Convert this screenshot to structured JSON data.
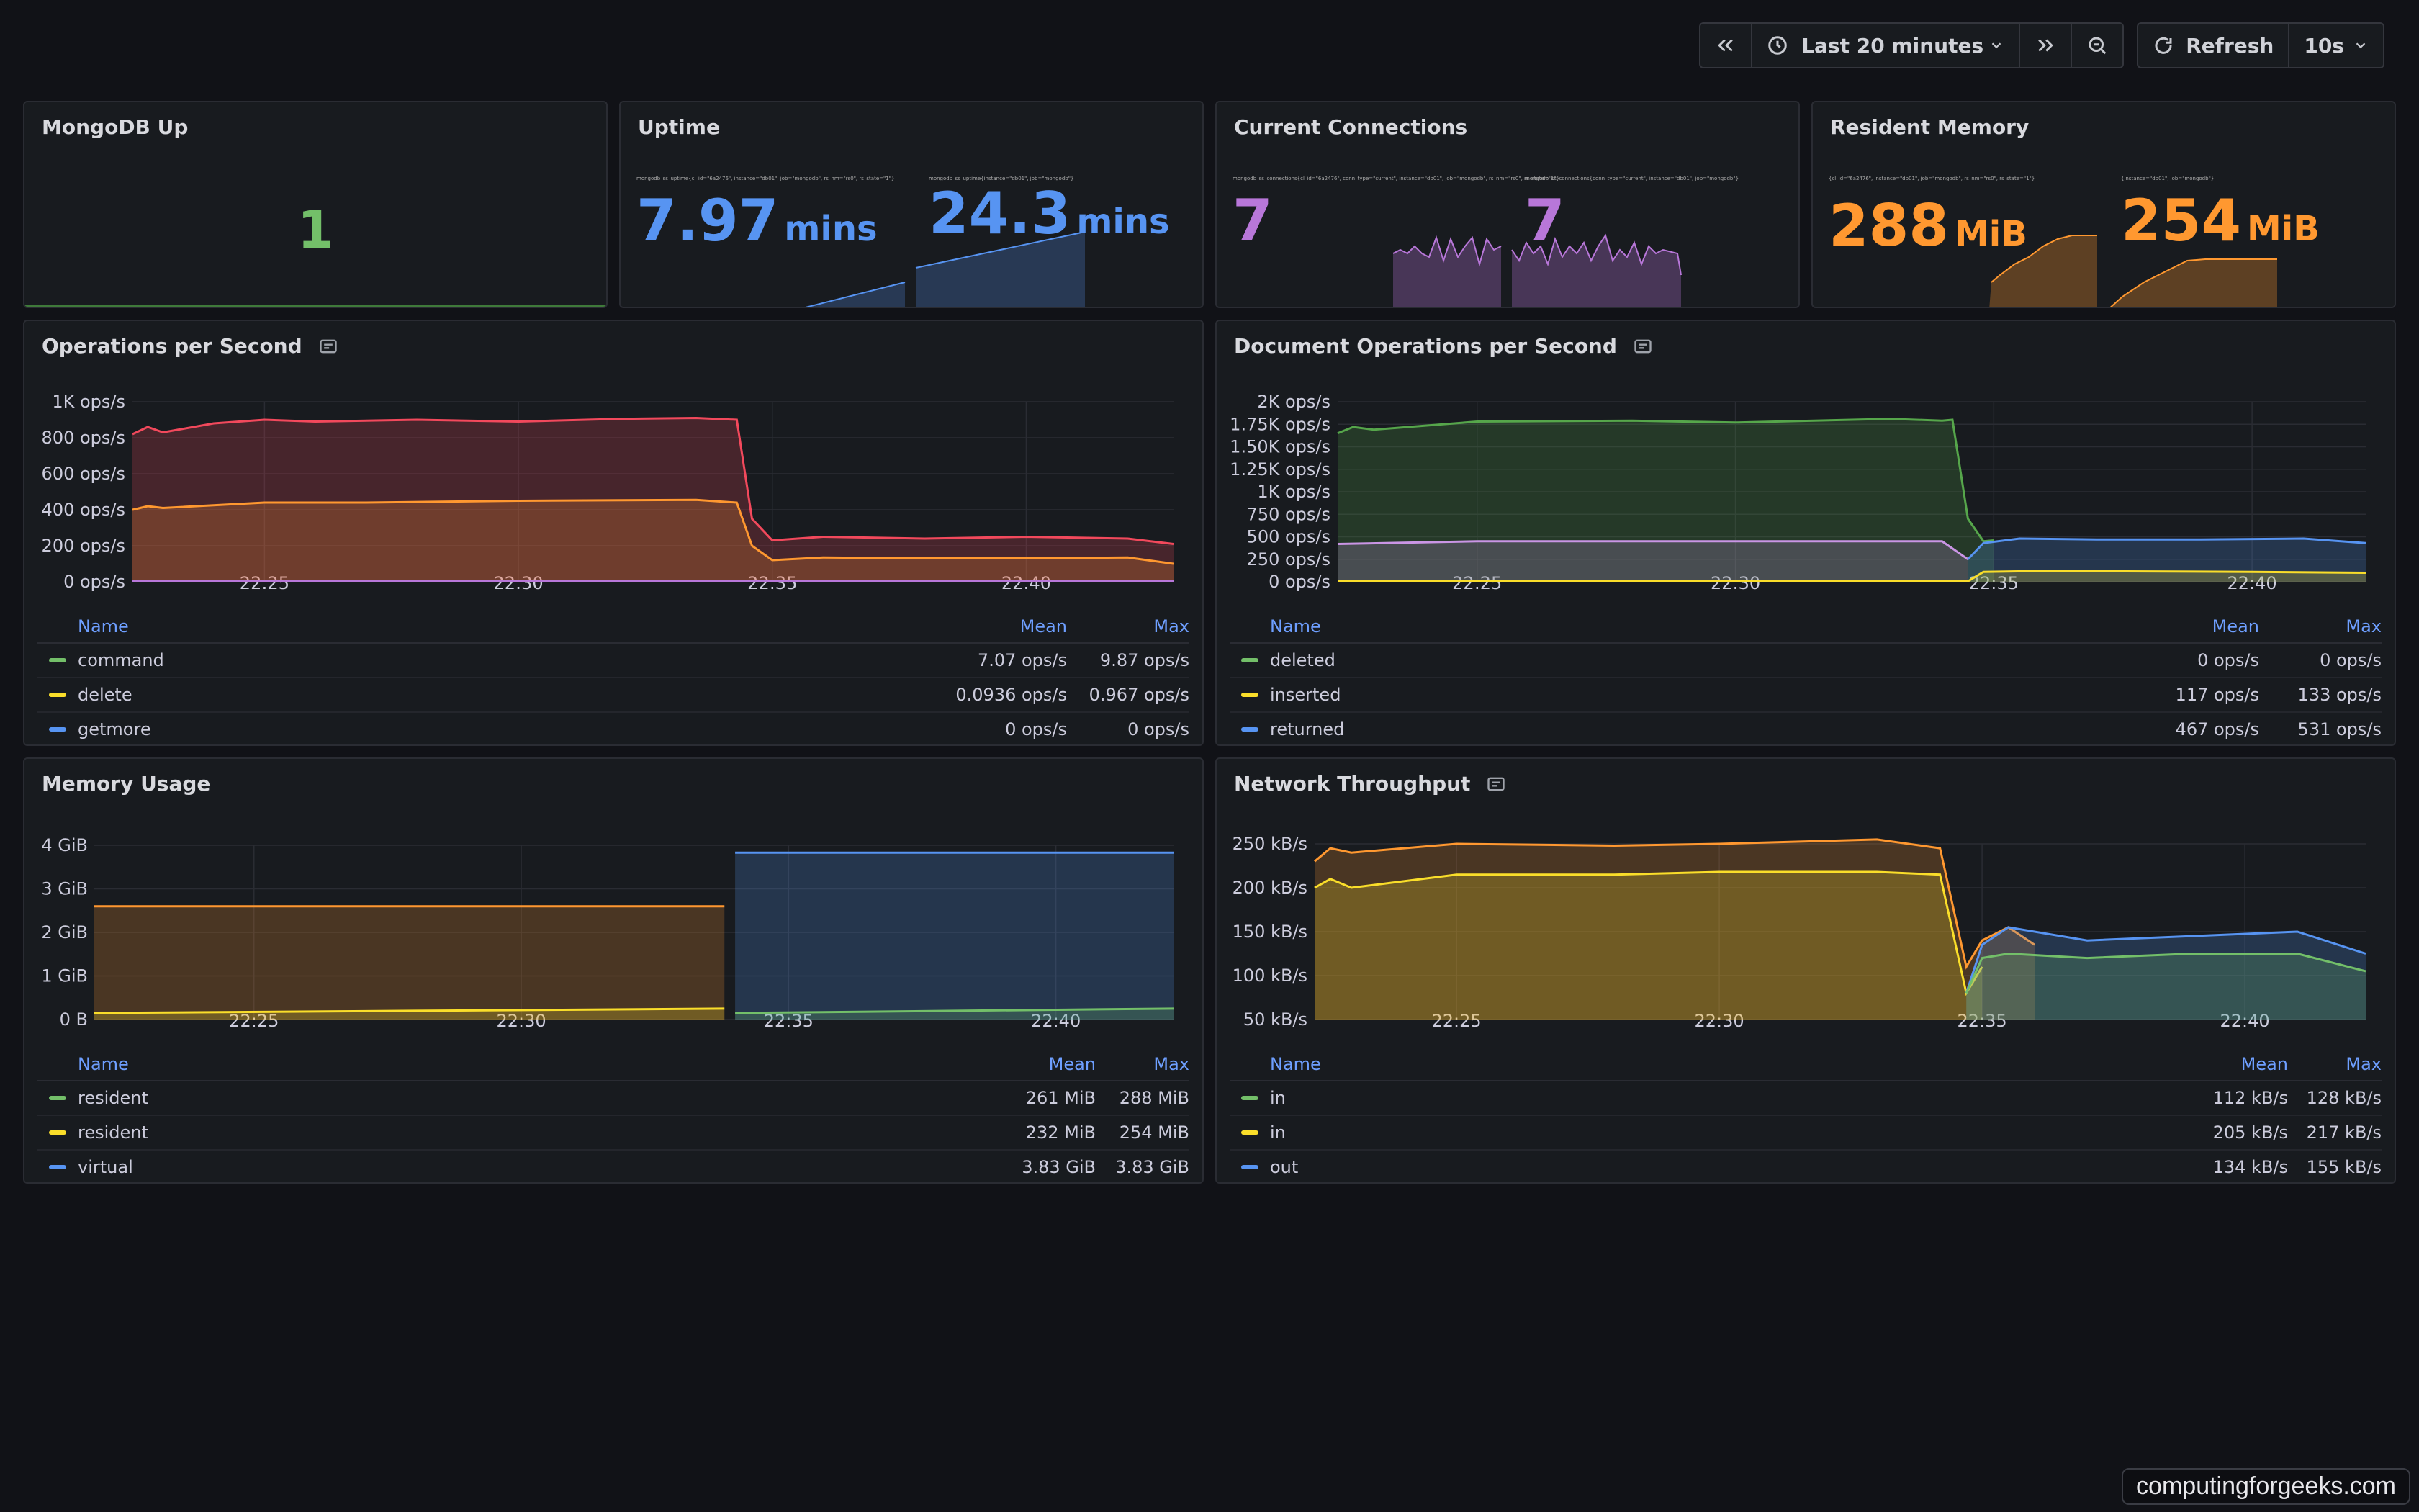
{
  "toolbar": {
    "time_range": "Last 20 minutes",
    "refresh_label": "Refresh",
    "refresh_interval": "10s"
  },
  "stats": {
    "mongodb_up": {
      "title": "MongoDB Up",
      "value": "1",
      "color": "#73bf69"
    },
    "uptime": {
      "title": "Uptime",
      "v1": "7.97",
      "v2": "24.3",
      "unit": "mins",
      "color": "#5794f2",
      "l1": "mongodb_ss_uptime{cl_id=\"6a2476\", instance=\"db01\", job=\"mongodb\", rs_nm=\"rs0\", rs_state=\"1\"}",
      "l2": "mongodb_ss_uptime{instance=\"db01\", job=\"mongodb\"}"
    },
    "connections": {
      "title": "Current Connections",
      "v1": "7",
      "v2": "7",
      "color": "#b877d9",
      "l1": "mongodb_ss_connections{cl_id=\"6a2476\", conn_type=\"current\", instance=\"db01\", job=\"mongodb\", rs_nm=\"rs0\", rs_state=\"1\"}",
      "l2": "mongodb_ss_connections{conn_type=\"current\", instance=\"db01\", job=\"mongodb\"}"
    },
    "resident_memory": {
      "title": "Resident Memory",
      "v1": "288",
      "v2": "254",
      "unit": "MiB",
      "color": "#ff9830",
      "l1": "{cl_id=\"6a2476\", instance=\"db01\", job=\"mongodb\", rs_nm=\"rs0\", rs_state=\"1\"}",
      "l2": "{instance=\"db01\", job=\"mongodb\"}"
    }
  },
  "panels": {
    "ops": {
      "title": "Operations per Second",
      "legend_head": {
        "name": "Name",
        "c1": "Mean",
        "c2": "Max"
      },
      "rows": [
        {
          "name": "command",
          "c1": "7.07 ops/s",
          "c2": "9.87 ops/s",
          "color": "#73bf69"
        },
        {
          "name": "delete",
          "c1": "0.0936 ops/s",
          "c2": "0.967 ops/s",
          "color": "#fade2a"
        },
        {
          "name": "getmore",
          "c1": "0 ops/s",
          "c2": "0 ops/s",
          "color": "#5794f2"
        }
      ]
    },
    "docops": {
      "title": "Document Operations per Second",
      "legend_head": {
        "name": "Name",
        "c1": "Mean",
        "c2": "Max"
      },
      "rows": [
        {
          "name": "deleted",
          "c1": "0 ops/s",
          "c2": "0 ops/s",
          "color": "#73bf69"
        },
        {
          "name": "inserted",
          "c1": "117 ops/s",
          "c2": "133 ops/s",
          "color": "#fade2a"
        },
        {
          "name": "returned",
          "c1": "467 ops/s",
          "c2": "531 ops/s",
          "color": "#5794f2"
        }
      ]
    },
    "mem": {
      "title": "Memory Usage",
      "legend_head": {
        "name": "Name",
        "c1": "Mean",
        "c2": "Max"
      },
      "rows": [
        {
          "name": "resident",
          "c1": "261 MiB",
          "c2": "288 MiB",
          "color": "#73bf69"
        },
        {
          "name": "resident",
          "c1": "232 MiB",
          "c2": "254 MiB",
          "color": "#fade2a"
        },
        {
          "name": "virtual",
          "c1": "3.83 GiB",
          "c2": "3.83 GiB",
          "color": "#5794f2"
        }
      ]
    },
    "net": {
      "title": "Network Throughput",
      "legend_head": {
        "name": "Name",
        "c1": "Mean",
        "c2": "Max"
      },
      "rows": [
        {
          "name": "in",
          "c1": "112 kB/s",
          "c2": "128 kB/s",
          "color": "#73bf69"
        },
        {
          "name": "in",
          "c1": "205 kB/s",
          "c2": "217 kB/s",
          "color": "#fade2a"
        },
        {
          "name": "out",
          "c1": "134 kB/s",
          "c2": "155 kB/s",
          "color": "#5794f2"
        }
      ]
    }
  },
  "chart_data": [
    {
      "type": "area",
      "title": "Operations per Second",
      "x_ticks": [
        "22:25",
        "22:30",
        "22:35",
        "22:40"
      ],
      "y_ticks": [
        "0 ops/s",
        "200 ops/s",
        "400 ops/s",
        "600 ops/s",
        "800 ops/s",
        "1K ops/s"
      ],
      "ylim": [
        0,
        1000
      ],
      "x_range_min": [
        22.4,
        42.9
      ],
      "series": [
        {
          "color": "#f2495c",
          "points": [
            [
              22.4,
              820
            ],
            [
              22.7,
              860
            ],
            [
              23.0,
              830
            ],
            [
              24.0,
              880
            ],
            [
              25.0,
              900
            ],
            [
              26.0,
              890
            ],
            [
              28.0,
              900
            ],
            [
              30.0,
              890
            ],
            [
              32.0,
              905
            ],
            [
              33.5,
              910
            ],
            [
              34.3,
              900
            ],
            [
              34.6,
              350
            ],
            [
              35.0,
              230
            ],
            [
              36.0,
              250
            ],
            [
              38.0,
              240
            ],
            [
              40.0,
              250
            ],
            [
              42.0,
              240
            ],
            [
              42.9,
              210
            ]
          ]
        },
        {
          "color": "#ff9830",
          "points": [
            [
              22.4,
              400
            ],
            [
              22.7,
              420
            ],
            [
              23.0,
              410
            ],
            [
              25.0,
              440
            ],
            [
              27.0,
              440
            ],
            [
              30.0,
              450
            ],
            [
              33.5,
              455
            ],
            [
              34.3,
              440
            ],
            [
              34.6,
              200
            ],
            [
              35.0,
              120
            ],
            [
              36.0,
              135
            ],
            [
              38.0,
              130
            ],
            [
              40.0,
              130
            ],
            [
              42.0,
              135
            ],
            [
              42.9,
              100
            ]
          ]
        },
        {
          "color": "#b877d9",
          "points": [
            [
              22.4,
              5
            ],
            [
              42.9,
              5
            ]
          ]
        }
      ]
    },
    {
      "type": "area",
      "title": "Document Operations per Second",
      "x_ticks": [
        "22:25",
        "22:30",
        "22:35",
        "22:40"
      ],
      "y_ticks": [
        "0 ops/s",
        "250 ops/s",
        "500 ops/s",
        "750 ops/s",
        "1K ops/s",
        "1.25K ops/s",
        "1.50K ops/s",
        "1.75K ops/s",
        "2K ops/s"
      ],
      "ylim": [
        0,
        2000
      ],
      "x_range_min": [
        22.3,
        42.2
      ],
      "series": [
        {
          "color": "#56a64b",
          "points": [
            [
              22.3,
              1650
            ],
            [
              22.6,
              1720
            ],
            [
              23.0,
              1690
            ],
            [
              25.0,
              1780
            ],
            [
              28.0,
              1790
            ],
            [
              30.0,
              1770
            ],
            [
              33.0,
              1810
            ],
            [
              34.0,
              1790
            ],
            [
              34.2,
              1800
            ],
            [
              34.5,
              700
            ],
            [
              34.8,
              450
            ],
            [
              35.0,
              460
            ]
          ]
        },
        {
          "color": "#ca95e5",
          "points": [
            [
              22.3,
              420
            ],
            [
              25.0,
              450
            ],
            [
              30.0,
              450
            ],
            [
              34.0,
              450
            ],
            [
              34.5,
              250
            ]
          ]
        },
        {
          "color": "#5794f2",
          "points": [
            [
              34.5,
              250
            ],
            [
              34.8,
              430
            ],
            [
              35.5,
              480
            ],
            [
              37.0,
              470
            ],
            [
              39.0,
              470
            ],
            [
              41.0,
              480
            ],
            [
              42.2,
              430
            ]
          ]
        },
        {
          "color": "#fade2a",
          "points": [
            [
              22.3,
              5
            ],
            [
              34.5,
              5
            ],
            [
              34.8,
              110
            ],
            [
              36.0,
              120
            ],
            [
              40.0,
              110
            ],
            [
              42.2,
              100
            ]
          ]
        }
      ]
    },
    {
      "type": "area",
      "title": "Memory Usage",
      "x_ticks": [
        "22:25",
        "22:30",
        "22:35",
        "22:40"
      ],
      "y_ticks": [
        "0 B",
        "1 GiB",
        "2 GiB",
        "3 GiB",
        "4 GiB"
      ],
      "ylim": [
        0,
        4
      ],
      "x_range_min": [
        22.0,
        42.2
      ],
      "series": [
        {
          "color": "#ff9830",
          "points": [
            [
              22.0,
              2.6
            ],
            [
              33.8,
              2.6
            ]
          ]
        },
        {
          "color": "#fade2a",
          "points": [
            [
              22.0,
              0.15
            ],
            [
              28.0,
              0.2
            ],
            [
              33.8,
              0.25
            ]
          ]
        },
        {
          "color": "#5794f2",
          "points": [
            [
              34.0,
              3.83
            ],
            [
              42.2,
              3.83
            ]
          ]
        },
        {
          "color": "#73bf69",
          "points": [
            [
              34.0,
              0.15
            ],
            [
              42.2,
              0.25
            ]
          ]
        }
      ]
    },
    {
      "type": "area",
      "title": "Network Throughput",
      "x_ticks": [
        "22:25",
        "22:30",
        "22:35",
        "22:40"
      ],
      "y_ticks": [
        "50 kB/s",
        "100 kB/s",
        "150 kB/s",
        "200 kB/s",
        "250 kB/s"
      ],
      "ylim": [
        50,
        250
      ],
      "x_range_min": [
        22.3,
        42.3
      ],
      "series": [
        {
          "color": "#ff9830",
          "points": [
            [
              22.3,
              230
            ],
            [
              22.6,
              245
            ],
            [
              23.0,
              240
            ],
            [
              25.0,
              250
            ],
            [
              28.0,
              248
            ],
            [
              30.0,
              250
            ],
            [
              33.0,
              255
            ],
            [
              34.2,
              245
            ],
            [
              34.7,
              110
            ],
            [
              35.0,
              140
            ],
            [
              35.5,
              155
            ],
            [
              36.0,
              135
            ]
          ]
        },
        {
          "color": "#fade2a",
          "points": [
            [
              22.3,
              200
            ],
            [
              22.6,
              210
            ],
            [
              23.0,
              200
            ],
            [
              25.0,
              215
            ],
            [
              28.0,
              215
            ],
            [
              30.0,
              218
            ],
            [
              33.0,
              218
            ],
            [
              34.2,
              215
            ],
            [
              34.7,
              80
            ],
            [
              35.0,
              110
            ]
          ]
        },
        {
          "color": "#5794f2",
          "points": [
            [
              34.7,
              80
            ],
            [
              35.0,
              135
            ],
            [
              35.5,
              155
            ],
            [
              37.0,
              140
            ],
            [
              39.0,
              145
            ],
            [
              41.0,
              150
            ],
            [
              42.3,
              125
            ]
          ]
        },
        {
          "color": "#73bf69",
          "points": [
            [
              34.7,
              80
            ],
            [
              35.0,
              120
            ],
            [
              35.5,
              125
            ],
            [
              37.0,
              120
            ],
            [
              39.0,
              125
            ],
            [
              41.0,
              125
            ],
            [
              42.3,
              105
            ]
          ]
        }
      ]
    }
  ],
  "watermark": "computingforgeeks.com"
}
